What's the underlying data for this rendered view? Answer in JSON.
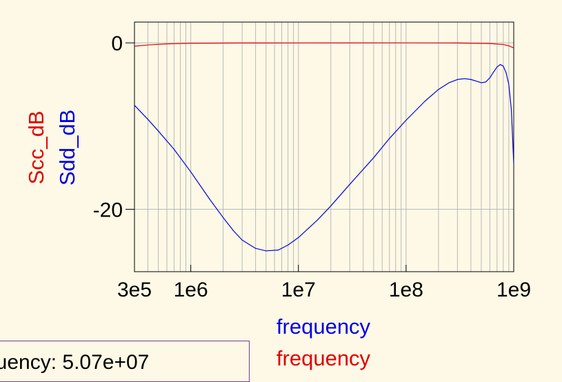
{
  "chart_data": {
    "type": "line",
    "x_scale": "log",
    "xlim": [
      300000,
      1000000000
    ],
    "ylim": [
      -27.5,
      2.5
    ],
    "x_ticks": [
      {
        "value": 300000,
        "label": "3e5"
      },
      {
        "value": 1000000,
        "label": "1e6"
      },
      {
        "value": 10000000,
        "label": "1e7"
      },
      {
        "value": 100000000,
        "label": "1e8"
      },
      {
        "value": 1000000000,
        "label": "1e9"
      }
    ],
    "y_ticks": [
      {
        "value": 0,
        "label": "0"
      },
      {
        "value": -20,
        "label": "-20"
      }
    ],
    "grid": true,
    "y_axis_labels": [
      {
        "text": "Scc_dB",
        "color": "#e00000"
      },
      {
        "text": "Sdd_dB",
        "color": "#0000e0"
      }
    ],
    "x_axis_labels": [
      {
        "text": "frequency",
        "color": "#0000e0"
      },
      {
        "text": "frequency",
        "color": "#e00000"
      }
    ],
    "series": [
      {
        "color": "#e00000",
        "points": [
          [
            300000,
            -0.4
          ],
          [
            400000,
            -0.25
          ],
          [
            600000,
            -0.12
          ],
          [
            1000000,
            -0.05
          ],
          [
            3000000,
            -0.02
          ],
          [
            10000000,
            -0.01
          ],
          [
            100000000,
            0.0
          ],
          [
            300000000,
            -0.02
          ],
          [
            600000000,
            -0.08
          ],
          [
            800000000,
            -0.2
          ],
          [
            900000000,
            -0.35
          ],
          [
            1000000000,
            -0.6
          ]
        ]
      },
      {
        "color": "#0000e0",
        "points": [
          [
            300000,
            -7.5
          ],
          [
            400000,
            -9.2
          ],
          [
            500000,
            -10.6
          ],
          [
            700000,
            -12.8
          ],
          [
            1000000,
            -15.5
          ],
          [
            1500000,
            -18.8
          ],
          [
            2000000,
            -21.0
          ],
          [
            2500000,
            -22.6
          ],
          [
            3000000,
            -23.7
          ],
          [
            4000000,
            -24.7
          ],
          [
            5000000,
            -25.0
          ],
          [
            6500000,
            -24.9
          ],
          [
            8000000,
            -24.3
          ],
          [
            10000000,
            -23.4
          ],
          [
            15000000,
            -21.3
          ],
          [
            20000000,
            -19.6
          ],
          [
            30000000,
            -17.0
          ],
          [
            50000000,
            -13.8
          ],
          [
            70000000,
            -11.5
          ],
          [
            100000000,
            -9.3
          ],
          [
            150000000,
            -7.0
          ],
          [
            200000000,
            -5.6
          ],
          [
            250000000,
            -4.8
          ],
          [
            300000000,
            -4.4
          ],
          [
            350000000,
            -4.3
          ],
          [
            400000000,
            -4.4
          ],
          [
            450000000,
            -4.6
          ],
          [
            500000000,
            -4.8
          ],
          [
            550000000,
            -4.7
          ],
          [
            600000000,
            -4.2
          ],
          [
            650000000,
            -3.5
          ],
          [
            700000000,
            -2.9
          ],
          [
            750000000,
            -2.6
          ],
          [
            800000000,
            -2.8
          ],
          [
            850000000,
            -3.6
          ],
          [
            900000000,
            -5.0
          ],
          [
            950000000,
            -8.0
          ],
          [
            1000000000,
            -14.5
          ]
        ]
      }
    ]
  },
  "readout": {
    "text": "quency: 5.07e+07"
  }
}
